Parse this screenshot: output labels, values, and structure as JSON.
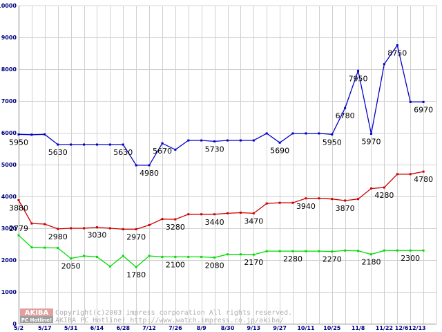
{
  "chart_data": {
    "type": "line",
    "title": "",
    "xlabel": "",
    "ylabel": "",
    "ylim": [
      0,
      10000
    ],
    "grid": true,
    "yticks": [
      "0",
      "1000",
      "2000",
      "3000",
      "4000",
      "5000",
      "6000",
      "7000",
      "8000",
      "9000",
      "10000"
    ],
    "xtick_labels": [
      "5/2",
      "5/17",
      "5/31",
      "6/14",
      "6/28",
      "7/12",
      "7/26",
      "8/9",
      "8/30",
      "9/13",
      "9/27",
      "10/11",
      "10/25",
      "11/8",
      "11/22",
      "12/612/13"
    ],
    "x": [
      0,
      1,
      2,
      3,
      4,
      5,
      6,
      7,
      8,
      9,
      10,
      11,
      12,
      13,
      14,
      15,
      16,
      17,
      18,
      19,
      20,
      21,
      22,
      23,
      24,
      25,
      26,
      27,
      28,
      29,
      30,
      31,
      32
    ],
    "series": [
      {
        "color": "#0000cc",
        "values": [
          5950,
          5940,
          5950,
          5630,
          5630,
          5630,
          5630,
          5630,
          5630,
          4980,
          4980,
          5670,
          5470,
          5760,
          5760,
          5730,
          5760,
          5760,
          5760,
          5980,
          5690,
          5980,
          5980,
          5980,
          5950,
          6780,
          7950,
          5970,
          8160,
          8750,
          6970,
          6970,
          null
        ],
        "labels": [
          {
            "i": 0,
            "text": "5950",
            "pos": "below"
          },
          {
            "i": 3,
            "text": "5630",
            "pos": "below"
          },
          {
            "i": 8,
            "text": "5630",
            "pos": "below"
          },
          {
            "i": 10,
            "text": "4980",
            "pos": "below"
          },
          {
            "i": 11,
            "text": "5670",
            "pos": "below"
          },
          {
            "i": 15,
            "text": "5730",
            "pos": "below"
          },
          {
            "i": 20,
            "text": "5690",
            "pos": "below"
          },
          {
            "i": 24,
            "text": "5950",
            "pos": "below"
          },
          {
            "i": 25,
            "text": "6780",
            "pos": "below"
          },
          {
            "i": 26,
            "text": "7950",
            "pos": "below"
          },
          {
            "i": 27,
            "text": "5970",
            "pos": "below"
          },
          {
            "i": 29,
            "text": "8750",
            "pos": "below"
          },
          {
            "i": 31,
            "text": "6970",
            "pos": "below"
          }
        ]
      },
      {
        "color": "#cc0000",
        "values": [
          3880,
          3150,
          3130,
          2980,
          3000,
          3000,
          3030,
          3000,
          2970,
          2970,
          3100,
          3290,
          3280,
          3440,
          3440,
          3440,
          3470,
          3490,
          3470,
          3780,
          3800,
          3800,
          3940,
          3940,
          3920,
          3870,
          3920,
          4250,
          4280,
          4700,
          4700,
          4780,
          null
        ],
        "labels": [
          {
            "i": 0,
            "text": "3880",
            "pos": "below"
          },
          {
            "i": 3,
            "text": "2980",
            "pos": "below"
          },
          {
            "i": 6,
            "text": "3030",
            "pos": "below"
          },
          {
            "i": 9,
            "text": "2970",
            "pos": "below"
          },
          {
            "i": 12,
            "text": "3280",
            "pos": "below"
          },
          {
            "i": 15,
            "text": "3440",
            "pos": "below"
          },
          {
            "i": 18,
            "text": "3470",
            "pos": "below"
          },
          {
            "i": 22,
            "text": "3940",
            "pos": "below"
          },
          {
            "i": 25,
            "text": "3870",
            "pos": "below"
          },
          {
            "i": 28,
            "text": "4280",
            "pos": "below"
          },
          {
            "i": 31,
            "text": "4780",
            "pos": "below"
          }
        ]
      },
      {
        "color": "#00dd00",
        "values": [
          2779,
          2400,
          2390,
          2380,
          2050,
          2130,
          2100,
          1800,
          2130,
          1780,
          2130,
          2100,
          2100,
          2100,
          2100,
          2080,
          2180,
          2180,
          2170,
          2280,
          2280,
          2280,
          2280,
          2280,
          2270,
          2300,
          2290,
          2180,
          2300,
          2300,
          2300,
          2300,
          null
        ],
        "labels": [
          {
            "i": 0,
            "text": "2779",
            "pos": "above"
          },
          {
            "i": 4,
            "text": "2050",
            "pos": "below"
          },
          {
            "i": 9,
            "text": "1780",
            "pos": "below"
          },
          {
            "i": 12,
            "text": "2100",
            "pos": "below"
          },
          {
            "i": 15,
            "text": "2080",
            "pos": "below"
          },
          {
            "i": 18,
            "text": "2170",
            "pos": "below"
          },
          {
            "i": 21,
            "text": "2280",
            "pos": "below"
          },
          {
            "i": 24,
            "text": "2270",
            "pos": "below"
          },
          {
            "i": 27,
            "text": "2180",
            "pos": "below"
          },
          {
            "i": 30,
            "text": "2300",
            "pos": "below"
          }
        ]
      }
    ]
  },
  "watermark": {
    "logo_top": "AKIBA",
    "logo_bottom": "PC Hotline!",
    "line1": "Copyright(c)2003 impress corporation All rights reserved.",
    "line2": "AKIBA PC Hotline!  http://www.watch.impress.co.jp/akiba/"
  }
}
